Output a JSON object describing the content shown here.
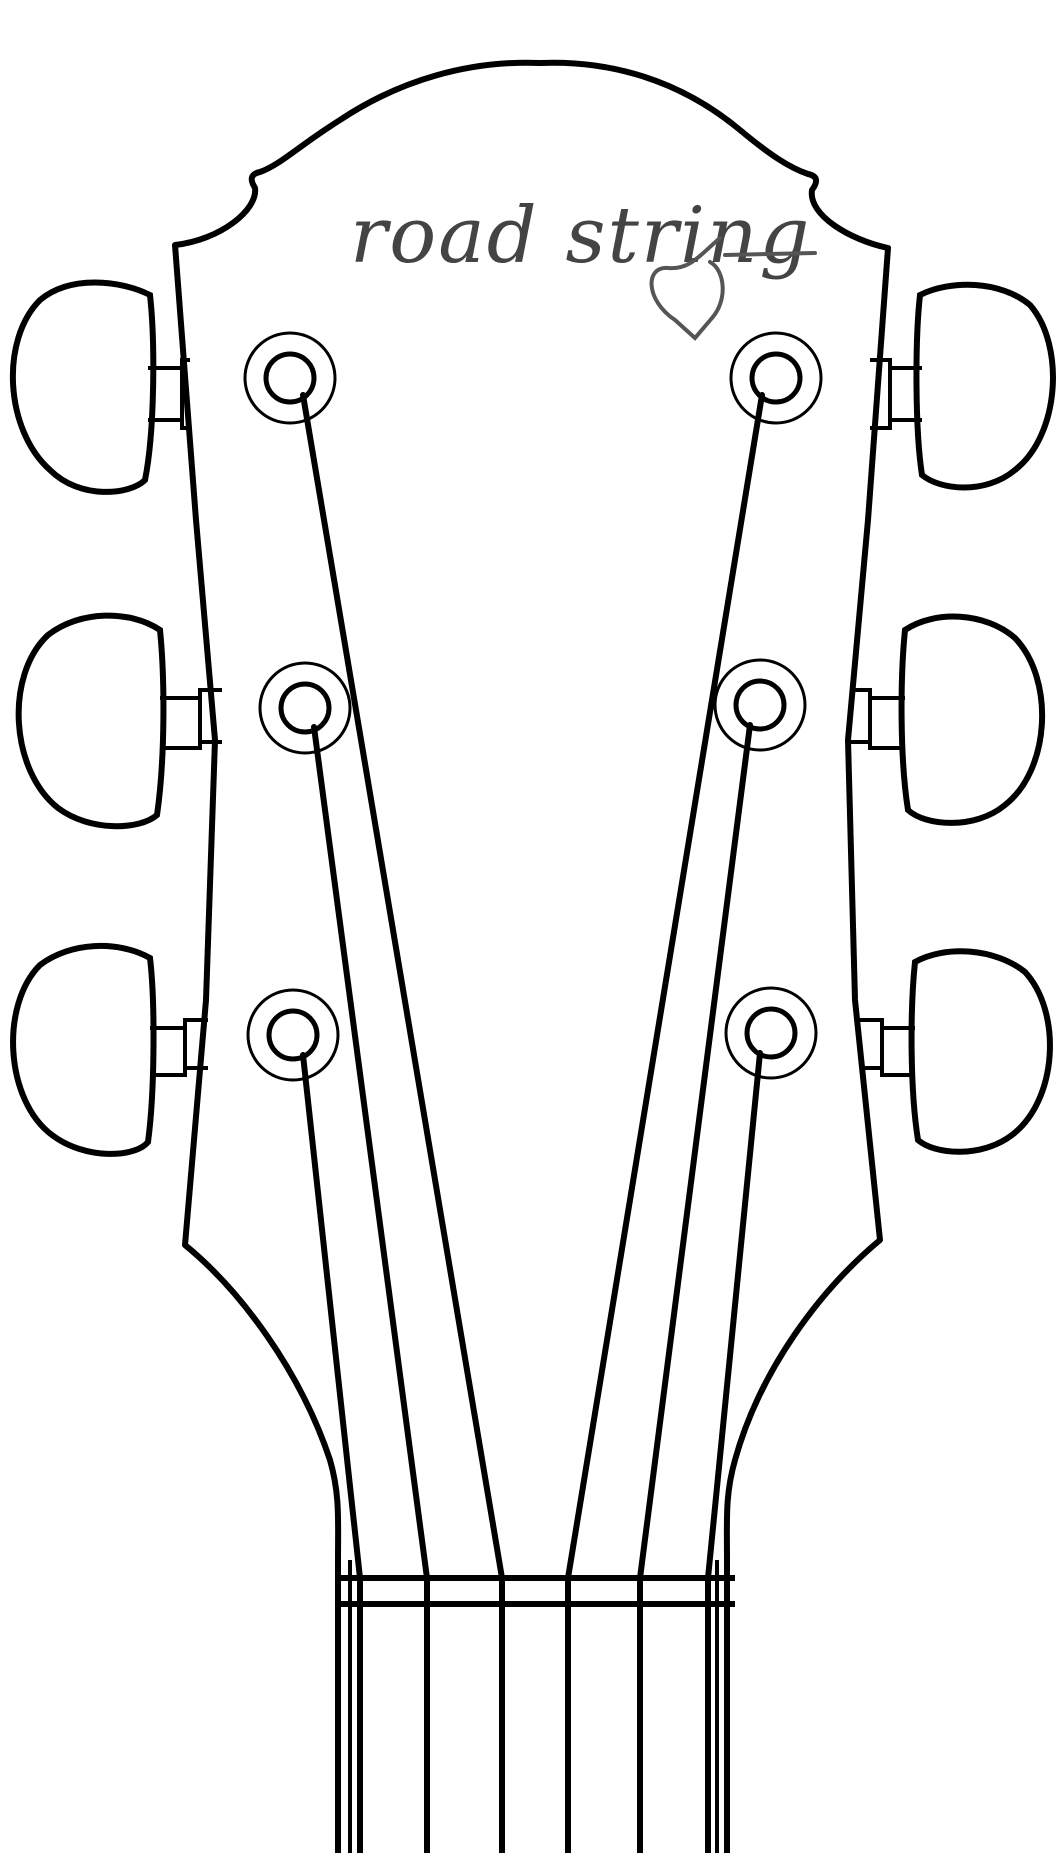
{
  "headstock": {
    "logo": {
      "text": "road string"
    }
  },
  "colors": {
    "line": "#000000",
    "logo": "#444444",
    "background": "#ffffff"
  },
  "tuners": {
    "left_count": 3,
    "right_count": 3
  },
  "strings": {
    "count": 6
  }
}
